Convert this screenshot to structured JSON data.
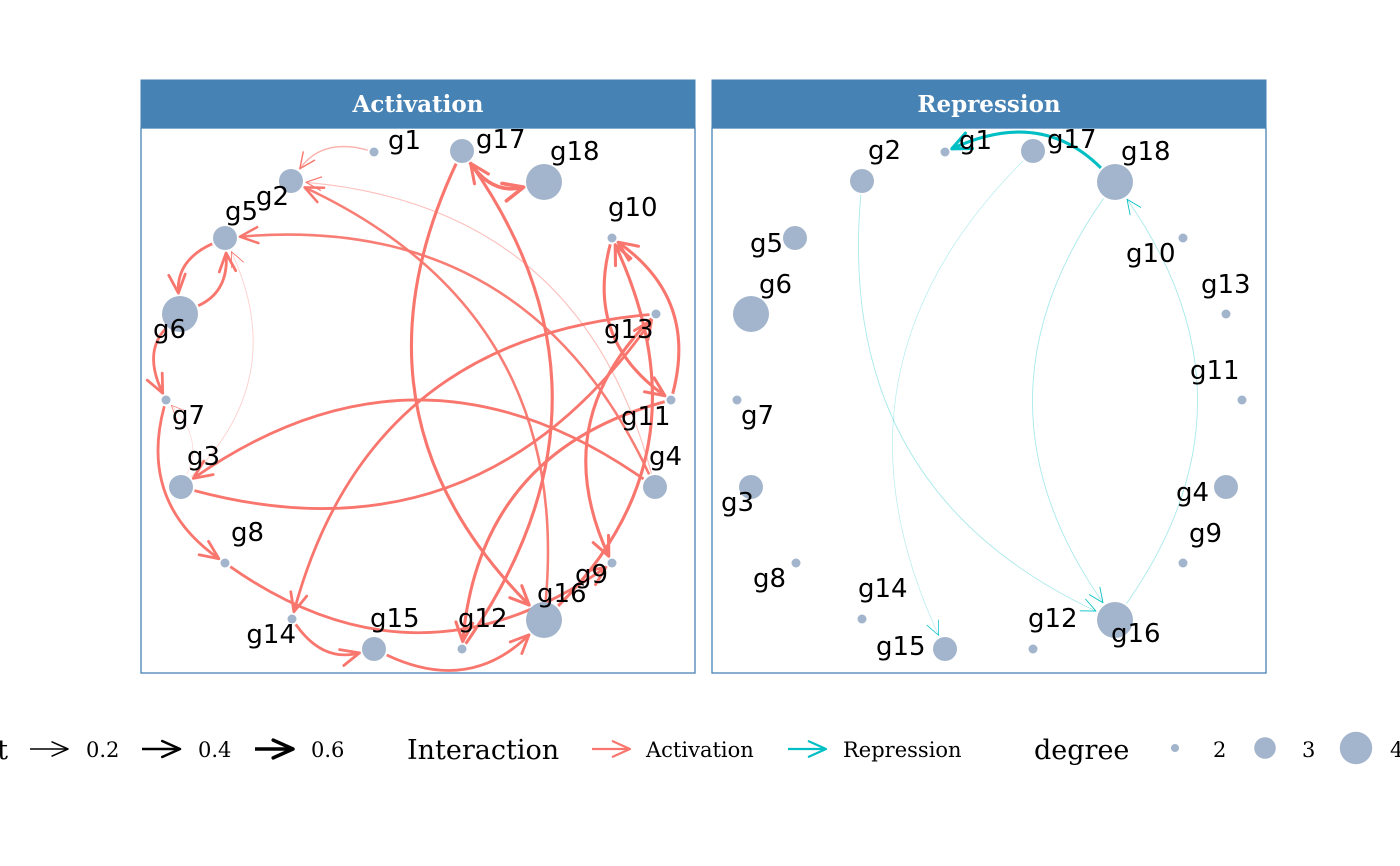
{
  "colors": {
    "activation": "#F8766D",
    "repression": "#00BFC4",
    "node": "#A3B5CC",
    "strip": "#4682B4",
    "border": "#4682B4"
  },
  "panels": [
    {
      "title": "Activation",
      "nodes": [
        {
          "id": "g1",
          "label": "g1",
          "degree": 2
        },
        {
          "id": "g17",
          "label": "g17",
          "degree": 3
        },
        {
          "id": "g18",
          "label": "g18",
          "degree": 4
        },
        {
          "id": "g2",
          "label": "g2",
          "degree": 3
        },
        {
          "id": "g5",
          "label": "g5",
          "degree": 3
        },
        {
          "id": "g10",
          "label": "g10",
          "degree": 2
        },
        {
          "id": "g6",
          "label": "g6",
          "degree": 4
        },
        {
          "id": "g13",
          "label": "g13",
          "degree": 2
        },
        {
          "id": "g7",
          "label": "g7",
          "degree": 2
        },
        {
          "id": "g11",
          "label": "g11",
          "degree": 2
        },
        {
          "id": "g3",
          "label": "g3",
          "degree": 3
        },
        {
          "id": "g4",
          "label": "g4",
          "degree": 3
        },
        {
          "id": "g8",
          "label": "g8",
          "degree": 2
        },
        {
          "id": "g9",
          "label": "g9",
          "degree": 2
        },
        {
          "id": "g16",
          "label": "g16",
          "degree": 4
        },
        {
          "id": "g14",
          "label": "g14",
          "degree": 2
        },
        {
          "id": "g15",
          "label": "g15",
          "degree": 3
        },
        {
          "id": "g12",
          "label": "g12",
          "degree": 2
        }
      ],
      "edges": [
        {
          "from": "g1",
          "to": "g2",
          "weight": 0.15
        },
        {
          "from": "g17",
          "to": "g18",
          "weight": 0.55
        },
        {
          "from": "g16",
          "to": "g2",
          "weight": 0.35
        },
        {
          "from": "g4",
          "to": "g2",
          "weight": 0.1
        },
        {
          "from": "g4",
          "to": "g5",
          "weight": 0.35
        },
        {
          "from": "g6",
          "to": "g5",
          "weight": 0.4
        },
        {
          "from": "g5",
          "to": "g6",
          "weight": 0.4
        },
        {
          "from": "g3",
          "to": "g5",
          "weight": 0.05
        },
        {
          "from": "g6",
          "to": "g7",
          "weight": 0.4
        },
        {
          "from": "g3",
          "to": "g7",
          "weight": 0.02
        },
        {
          "from": "g7",
          "to": "g8",
          "weight": 0.4
        },
        {
          "from": "g4",
          "to": "g3",
          "weight": 0.4
        },
        {
          "from": "g8",
          "to": "g9",
          "weight": 0.4
        },
        {
          "from": "g12",
          "to": "g17",
          "weight": 0.45
        },
        {
          "from": "g17",
          "to": "g16",
          "weight": 0.45
        },
        {
          "from": "g16",
          "to": "g10",
          "weight": 0.45
        },
        {
          "from": "g11",
          "to": "g10",
          "weight": 0.45
        },
        {
          "from": "g10",
          "to": "g11",
          "weight": 0.45
        },
        {
          "from": "g13",
          "to": "g14",
          "weight": 0.4
        },
        {
          "from": "g3",
          "to": "g13",
          "weight": 0.4
        },
        {
          "from": "g11",
          "to": "g12",
          "weight": 0.45
        },
        {
          "from": "g14",
          "to": "g15",
          "weight": 0.4
        },
        {
          "from": "g15",
          "to": "g16",
          "weight": 0.4
        },
        {
          "from": "g13",
          "to": "g9",
          "weight": 0.45
        }
      ]
    },
    {
      "title": "Repression",
      "nodes": [
        {
          "id": "g1",
          "label": "g1",
          "degree": 2
        },
        {
          "id": "g17",
          "label": "g17",
          "degree": 3
        },
        {
          "id": "g18",
          "label": "g18",
          "degree": 4
        },
        {
          "id": "g2",
          "label": "g2",
          "degree": 3
        },
        {
          "id": "g5",
          "label": "g5",
          "degree": 3
        },
        {
          "id": "g10",
          "label": "g10",
          "degree": 2
        },
        {
          "id": "g6",
          "label": "g6",
          "degree": 4
        },
        {
          "id": "g13",
          "label": "g13",
          "degree": 2
        },
        {
          "id": "g7",
          "label": "g7",
          "degree": 2
        },
        {
          "id": "g11",
          "label": "g11",
          "degree": 2
        },
        {
          "id": "g3",
          "label": "g3",
          "degree": 3
        },
        {
          "id": "g4",
          "label": "g4",
          "degree": 3
        },
        {
          "id": "g8",
          "label": "g8",
          "degree": 2
        },
        {
          "id": "g9",
          "label": "g9",
          "degree": 2
        },
        {
          "id": "g16",
          "label": "g16",
          "degree": 4
        },
        {
          "id": "g14",
          "label": "g14",
          "degree": 2
        },
        {
          "id": "g15",
          "label": "g15",
          "degree": 3
        },
        {
          "id": "g12",
          "label": "g12",
          "degree": 2
        }
      ],
      "edges": [
        {
          "from": "g18",
          "to": "g1",
          "weight": 0.45
        },
        {
          "from": "g2",
          "to": "g16",
          "weight": 0.05
        },
        {
          "from": "g16",
          "to": "g18",
          "weight": 0.05
        },
        {
          "from": "g18",
          "to": "g16",
          "weight": 0.05
        },
        {
          "from": "g17",
          "to": "g15",
          "weight": 0.02
        }
      ]
    }
  ],
  "legend": {
    "weight": {
      "title": "weight",
      "items": [
        {
          "label": "0.2",
          "weight": 0.2
        },
        {
          "label": "0.4",
          "weight": 0.4
        },
        {
          "label": "0.6",
          "weight": 0.6
        }
      ]
    },
    "interaction": {
      "title": "Interaction",
      "items": [
        {
          "label": "Activation",
          "color": "#F8766D"
        },
        {
          "label": "Repression",
          "color": "#00BFC4"
        }
      ]
    },
    "degree": {
      "title": "degree",
      "items": [
        {
          "label": "2",
          "degree": 2
        },
        {
          "label": "3",
          "degree": 3
        },
        {
          "label": "4",
          "degree": 4
        }
      ]
    }
  }
}
